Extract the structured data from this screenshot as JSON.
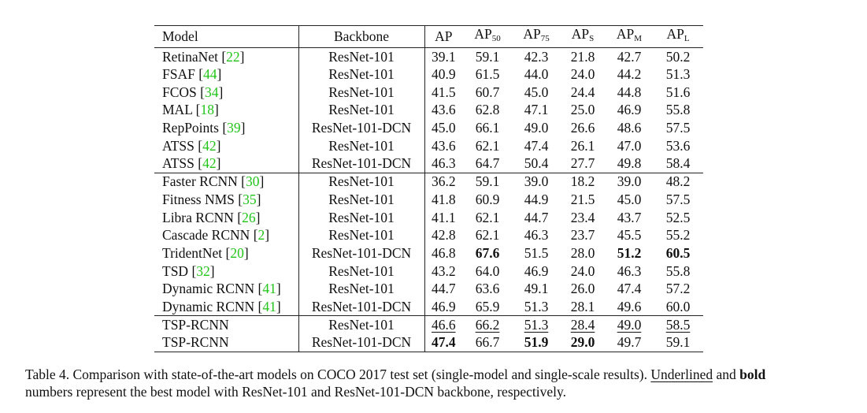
{
  "table": {
    "headers": {
      "model": "Model",
      "backbone": "Backbone",
      "ap": "AP",
      "ap50_base": "AP",
      "ap50_sub": "50",
      "ap75_base": "AP",
      "ap75_sub": "75",
      "aps_base": "AP",
      "aps_sub": "S",
      "apm_base": "AP",
      "apm_sub": "M",
      "apl_base": "AP",
      "apl_sub": "L"
    },
    "groups": [
      [
        {
          "name": "RetinaNet",
          "ref": "22",
          "backbone": "ResNet-101",
          "vals": [
            "39.1",
            "59.1",
            "42.3",
            "21.8",
            "42.7",
            "50.2"
          ],
          "style": [
            "",
            "",
            "",
            "",
            "",
            ""
          ]
        },
        {
          "name": "FSAF",
          "ref": "44",
          "backbone": "ResNet-101",
          "vals": [
            "40.9",
            "61.5",
            "44.0",
            "24.0",
            "44.2",
            "51.3"
          ],
          "style": [
            "",
            "",
            "",
            "",
            "",
            ""
          ]
        },
        {
          "name": "FCOS",
          "ref": "34",
          "backbone": "ResNet-101",
          "vals": [
            "41.5",
            "60.7",
            "45.0",
            "24.4",
            "44.8",
            "51.6"
          ],
          "style": [
            "",
            "",
            "",
            "",
            "",
            ""
          ]
        },
        {
          "name": "MAL",
          "ref": "18",
          "backbone": "ResNet-101",
          "vals": [
            "43.6",
            "62.8",
            "47.1",
            "25.0",
            "46.9",
            "55.8"
          ],
          "style": [
            "",
            "",
            "",
            "",
            "",
            ""
          ]
        },
        {
          "name": "RepPoints",
          "ref": "39",
          "backbone": "ResNet-101-DCN",
          "vals": [
            "45.0",
            "66.1",
            "49.0",
            "26.6",
            "48.6",
            "57.5"
          ],
          "style": [
            "",
            "",
            "",
            "",
            "",
            ""
          ]
        },
        {
          "name": "ATSS",
          "ref": "42",
          "backbone": "ResNet-101",
          "vals": [
            "43.6",
            "62.1",
            "47.4",
            "26.1",
            "47.0",
            "53.6"
          ],
          "style": [
            "",
            "",
            "",
            "",
            "",
            ""
          ]
        },
        {
          "name": "ATSS",
          "ref": "42",
          "backbone": "ResNet-101-DCN",
          "vals": [
            "46.3",
            "64.7",
            "50.4",
            "27.7",
            "49.8",
            "58.4"
          ],
          "style": [
            "",
            "",
            "",
            "",
            "",
            ""
          ]
        }
      ],
      [
        {
          "name": "Faster RCNN",
          "ref": "30",
          "backbone": "ResNet-101",
          "vals": [
            "36.2",
            "59.1",
            "39.0",
            "18.2",
            "39.0",
            "48.2"
          ],
          "style": [
            "",
            "",
            "",
            "",
            "",
            ""
          ]
        },
        {
          "name": "Fitness NMS",
          "ref": "35",
          "backbone": "ResNet-101",
          "vals": [
            "41.8",
            "60.9",
            "44.9",
            "21.5",
            "45.0",
            "57.5"
          ],
          "style": [
            "",
            "",
            "",
            "",
            "",
            ""
          ]
        },
        {
          "name": "Libra RCNN",
          "ref": "26",
          "backbone": "ResNet-101",
          "vals": [
            "41.1",
            "62.1",
            "44.7",
            "23.4",
            "43.7",
            "52.5"
          ],
          "style": [
            "",
            "",
            "",
            "",
            "",
            ""
          ]
        },
        {
          "name": "Cascade RCNN",
          "ref": "2",
          "backbone": "ResNet-101",
          "vals": [
            "42.8",
            "62.1",
            "46.3",
            "23.7",
            "45.5",
            "55.2"
          ],
          "style": [
            "",
            "",
            "",
            "",
            "",
            ""
          ]
        },
        {
          "name": "TridentNet",
          "ref": "20",
          "backbone": "ResNet-101-DCN",
          "vals": [
            "46.8",
            "67.6",
            "51.5",
            "28.0",
            "51.2",
            "60.5"
          ],
          "style": [
            "",
            "bold",
            "",
            "",
            "bold",
            "bold"
          ]
        },
        {
          "name": "TSD",
          "ref": "32",
          "backbone": "ResNet-101",
          "vals": [
            "43.2",
            "64.0",
            "46.9",
            "24.0",
            "46.3",
            "55.8"
          ],
          "style": [
            "",
            "",
            "",
            "",
            "",
            ""
          ]
        },
        {
          "name": "Dynamic RCNN",
          "ref": "41",
          "backbone": "ResNet-101",
          "vals": [
            "44.7",
            "63.6",
            "49.1",
            "26.0",
            "47.4",
            "57.2"
          ],
          "style": [
            "",
            "",
            "",
            "",
            "",
            ""
          ]
        },
        {
          "name": "Dynamic RCNN",
          "ref": "41",
          "backbone": "ResNet-101-DCN",
          "vals": [
            "46.9",
            "65.9",
            "51.3",
            "28.1",
            "49.6",
            "60.0"
          ],
          "style": [
            "",
            "",
            "",
            "",
            "",
            ""
          ]
        }
      ],
      [
        {
          "name": "TSP-RCNN",
          "ref": "",
          "backbone": "ResNet-101",
          "vals": [
            "46.6",
            "66.2",
            "51.3",
            "28.4",
            "49.0",
            "58.5"
          ],
          "style": [
            "under",
            "under",
            "under",
            "under",
            "under",
            "under"
          ]
        },
        {
          "name": "TSP-RCNN",
          "ref": "",
          "backbone": "ResNet-101-DCN",
          "vals": [
            "47.4",
            "66.7",
            "51.9",
            "29.0",
            "49.7",
            "59.1"
          ],
          "style": [
            "bold",
            "",
            "bold",
            "bold",
            "",
            ""
          ]
        }
      ]
    ]
  },
  "caption": {
    "part1": "Table 4. Comparison with state-of-the-art models on COCO 2017 test set (single-model and single-scale results). ",
    "underlined": "Underlined",
    "part2": " and ",
    "bold": "bold",
    "part3": "numbers represent the best model with ResNet-101 and ResNet-101-DCN backbone, respectively."
  }
}
